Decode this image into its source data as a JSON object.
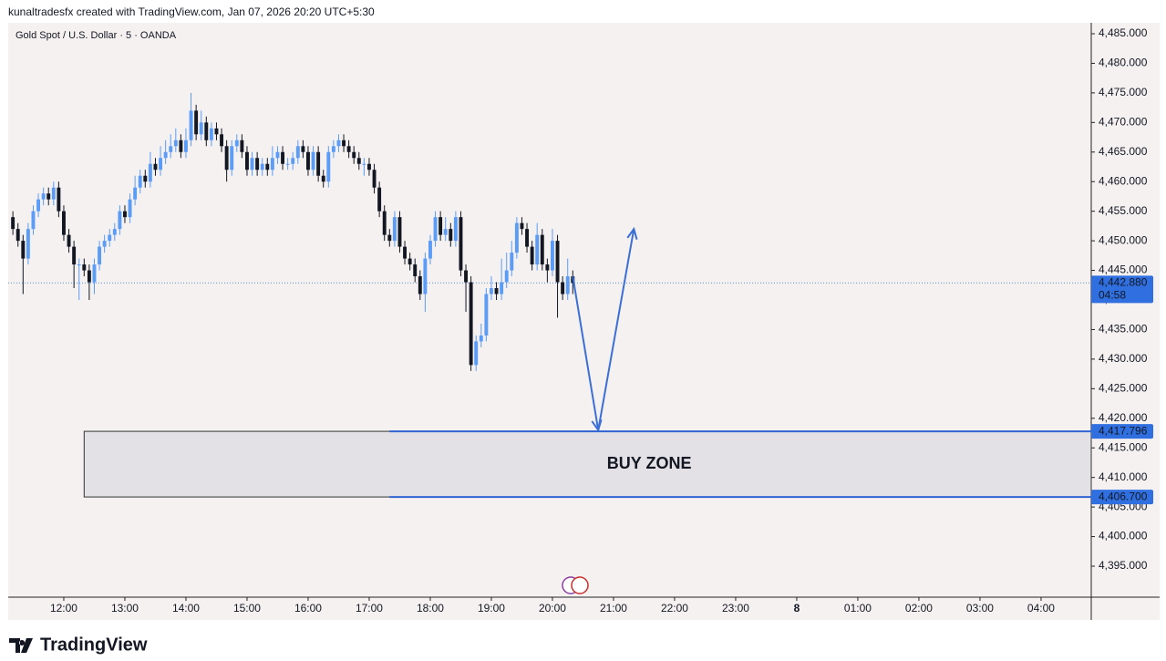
{
  "header": {
    "credit": "kunaltradesfx created with TradingView.com, Jan 07, 2026 20:20 UTC+5:30",
    "logo": "TradingView"
  },
  "chart_data": {
    "type": "candlestick",
    "title": "Gold Spot / U.S. Dollar · 5 · OANDA",
    "x": [
      "11:10",
      "11:15",
      "11:20",
      "11:25",
      "11:30",
      "11:35",
      "11:40",
      "11:45",
      "11:50",
      "11:55",
      "12:00",
      "12:05",
      "12:10",
      "12:15",
      "12:20",
      "12:25",
      "12:30",
      "12:35",
      "12:40",
      "12:45",
      "12:50",
      "12:55",
      "13:00",
      "13:05",
      "13:10",
      "13:15",
      "13:20",
      "13:25",
      "13:30",
      "13:35",
      "13:40",
      "13:45",
      "13:50",
      "13:55",
      "14:00",
      "14:05",
      "14:10",
      "14:15",
      "14:20",
      "14:25",
      "14:30",
      "14:35",
      "14:40",
      "14:45",
      "14:50",
      "14:55",
      "15:00",
      "15:05",
      "15:10",
      "15:15",
      "15:20",
      "15:25",
      "15:30",
      "15:35",
      "15:40",
      "15:45",
      "15:50",
      "15:55",
      "16:00",
      "16:05",
      "16:10",
      "16:15",
      "16:20",
      "16:25",
      "16:30",
      "16:35",
      "16:40",
      "16:45",
      "16:50",
      "16:55",
      "17:00",
      "17:05",
      "17:10",
      "17:15",
      "17:20",
      "17:25",
      "17:30",
      "17:35",
      "17:40",
      "17:45",
      "17:50",
      "17:55",
      "18:00",
      "18:05",
      "18:10",
      "18:15",
      "18:20",
      "18:25",
      "18:30",
      "18:35",
      "18:40",
      "18:45",
      "18:50",
      "18:55",
      "19:00",
      "19:05",
      "19:10",
      "19:15",
      "19:20",
      "19:25",
      "19:30",
      "19:35",
      "19:40",
      "19:45",
      "19:50",
      "19:55",
      "20:00",
      "20:05",
      "20:10",
      "20:15",
      "20:20"
    ],
    "ohlc": [
      [
        4454,
        4455,
        4451,
        4452
      ],
      [
        4452,
        4453,
        4449,
        4450
      ],
      [
        4450,
        4451,
        4441,
        4447
      ],
      [
        4447,
        4453,
        4446,
        4452
      ],
      [
        4452,
        4456,
        4451,
        4455
      ],
      [
        4455,
        4458,
        4454,
        4457
      ],
      [
        4457,
        4459,
        4456,
        4458
      ],
      [
        4458,
        4459,
        4456,
        4457
      ],
      [
        4457,
        4460,
        4456,
        4459
      ],
      [
        4459,
        4460,
        4454,
        4455
      ],
      [
        4455,
        4456,
        4450,
        4451
      ],
      [
        4451,
        4452,
        4448,
        4449
      ],
      [
        4449,
        4450,
        4442,
        4446
      ],
      [
        4446,
        4447,
        4440,
        4446
      ],
      [
        4446,
        4447,
        4444,
        4445
      ],
      [
        4445,
        4446,
        4440,
        4443
      ],
      [
        4443,
        4447,
        4441,
        4446
      ],
      [
        4446,
        4450,
        4445,
        4449
      ],
      [
        4449,
        4451,
        4448,
        4450
      ],
      [
        4450,
        4452,
        4449,
        4451
      ],
      [
        4451,
        4453,
        4450,
        4452
      ],
      [
        4452,
        4456,
        4451,
        4455
      ],
      [
        4455,
        4456,
        4453,
        4454
      ],
      [
        4454,
        4458,
        4453,
        4457
      ],
      [
        4457,
        4461,
        4456,
        4459
      ],
      [
        4459,
        4462,
        4458,
        4461
      ],
      [
        4461,
        4462,
        4459,
        4460
      ],
      [
        4460,
        4465,
        4459,
        4463
      ],
      [
        4463,
        4464,
        4461,
        4462
      ],
      [
        4462,
        4466,
        4461,
        4464
      ],
      [
        4464,
        4467,
        4463,
        4465
      ],
      [
        4465,
        4468,
        4464,
        4466
      ],
      [
        4466,
        4469,
        4465,
        4467
      ],
      [
        4467,
        4468,
        4464,
        4465
      ],
      [
        4465,
        4469,
        4464,
        4467
      ],
      [
        4467,
        4475,
        4466,
        4472
      ],
      [
        4472,
        4473,
        4467,
        4468
      ],
      [
        4468,
        4472,
        4467,
        4470
      ],
      [
        4470,
        4471,
        4466,
        4467
      ],
      [
        4467,
        4470,
        4466,
        4469
      ],
      [
        4469,
        4470,
        4467,
        4468
      ],
      [
        4468,
        4469,
        4465,
        4466
      ],
      [
        4466,
        4467,
        4460,
        4462
      ],
      [
        4462,
        4467,
        4461,
        4466
      ],
      [
        4466,
        4468,
        4465,
        4467
      ],
      [
        4467,
        4468,
        4464,
        4465
      ],
      [
        4465,
        4466,
        4461,
        4462
      ],
      [
        4462,
        4465,
        4461,
        4464
      ],
      [
        4464,
        4465,
        4461,
        4462
      ],
      [
        4462,
        4464,
        4461,
        4463
      ],
      [
        4463,
        4464,
        4461,
        4462
      ],
      [
        4462,
        4466,
        4461,
        4464
      ],
      [
        4464,
        4466,
        4463,
        4465
      ],
      [
        4465,
        4466,
        4462,
        4463
      ],
      [
        4463,
        4464,
        4462,
        4463
      ],
      [
        4463,
        4465,
        4462,
        4464
      ],
      [
        4464,
        4467,
        4463,
        4466
      ],
      [
        4466,
        4467,
        4464,
        4465
      ],
      [
        4465,
        4466,
        4461,
        4462
      ],
      [
        4462,
        4466,
        4461,
        4465
      ],
      [
        4465,
        4466,
        4460,
        4461
      ],
      [
        4461,
        4462,
        4459,
        4460
      ],
      [
        4460,
        4466,
        4459,
        4465
      ],
      [
        4465,
        4467,
        4464,
        4466
      ],
      [
        4466,
        4468,
        4465,
        4467
      ],
      [
        4467,
        4468,
        4465,
        4466
      ],
      [
        4466,
        4467,
        4464,
        4465
      ],
      [
        4465,
        4466,
        4463,
        4464
      ],
      [
        4464,
        4465,
        4462,
        4463
      ],
      [
        4463,
        4464,
        4461,
        4463
      ],
      [
        4463,
        4464,
        4461,
        4462
      ],
      [
        4462,
        4463,
        4458,
        4459
      ],
      [
        4459,
        4460,
        4454,
        4455
      ],
      [
        4455,
        4456,
        4450,
        4451
      ],
      [
        4451,
        4452,
        4449,
        4450
      ],
      [
        4450,
        4455,
        4449,
        4454
      ],
      [
        4454,
        4455,
        4448,
        4449
      ],
      [
        4449,
        4450,
        4446,
        4447
      ],
      [
        4447,
        4448,
        4445,
        4446
      ],
      [
        4446,
        4447,
        4443,
        4444
      ],
      [
        4444,
        4445,
        4440,
        4441
      ],
      [
        4441,
        4448,
        4438,
        4447
      ],
      [
        4447,
        4451,
        4446,
        4450
      ],
      [
        4450,
        4455,
        4449,
        4454
      ],
      [
        4454,
        4455,
        4450,
        4451
      ],
      [
        4451,
        4454,
        4450,
        4452
      ],
      [
        4452,
        4453,
        4449,
        4450
      ],
      [
        4450,
        4455,
        4449,
        4454
      ],
      [
        4454,
        4455,
        4444,
        4445
      ],
      [
        4445,
        4446,
        4438,
        4443
      ],
      [
        4443,
        4444,
        4428,
        4429
      ],
      [
        4429,
        4434,
        4428,
        4433
      ],
      [
        4433,
        4436,
        4432,
        4434
      ],
      [
        4434,
        4442,
        4433,
        4441
      ],
      [
        4441,
        4444,
        4440,
        4442
      ],
      [
        4442,
        4443,
        4440,
        4441
      ],
      [
        4441,
        4447,
        4440,
        4443
      ],
      [
        4443,
        4448,
        4442,
        4445
      ],
      [
        4445,
        4450,
        4444,
        4448
      ],
      [
        4448,
        4454,
        4447,
        4453
      ],
      [
        4453,
        4454,
        4451,
        4452
      ],
      [
        4452,
        4453,
        4448,
        4449
      ],
      [
        4449,
        4450,
        4445,
        4446
      ],
      [
        4446,
        4453,
        4445,
        4451
      ],
      [
        4451,
        4452,
        4445,
        4446
      ],
      [
        4446,
        4447,
        4443,
        4445
      ],
      [
        4445,
        4452,
        4444,
        4450
      ],
      [
        4450,
        4451,
        4437,
        4443
      ],
      [
        4443,
        4444,
        4440,
        4441
      ],
      [
        4441,
        4447,
        4440,
        4444
      ],
      [
        4444,
        4445,
        4441,
        4442.88
      ]
    ],
    "up_color": "#5b9cf6",
    "down_color": "#131722",
    "ylim": [
      4389.76,
      4486.85
    ],
    "yticks": [
      {
        "value": 4395,
        "label": "4,395.000"
      },
      {
        "value": 4400,
        "label": "4,400.000"
      },
      {
        "value": 4405,
        "label": "4,405.000"
      },
      {
        "value": 4410,
        "label": "4,410.000"
      },
      {
        "value": 4415,
        "label": "4,415.000"
      },
      {
        "value": 4420,
        "label": "4,420.000"
      },
      {
        "value": 4425,
        "label": "4,425.000"
      },
      {
        "value": 4430,
        "label": "4,430.000"
      },
      {
        "value": 4435,
        "label": "4,435.000"
      },
      {
        "value": 4440,
        "label": "4,440.000"
      },
      {
        "value": 4445,
        "label": "4,445.000"
      },
      {
        "value": 4450,
        "label": "4,450.000"
      },
      {
        "value": 4455,
        "label": "4,455.000"
      },
      {
        "value": 4460,
        "label": "4,460.000"
      },
      {
        "value": 4465,
        "label": "4,465.000"
      },
      {
        "value": 4470,
        "label": "4,470.000"
      },
      {
        "value": 4475,
        "label": "4,475.000"
      },
      {
        "value": 4480,
        "label": "4,480.000"
      },
      {
        "value": 4485,
        "label": "4,485.000"
      }
    ],
    "xlim": [
      665.4,
      1729.3
    ],
    "xticks": [
      {
        "value": 720,
        "label": "12:00"
      },
      {
        "value": 780,
        "label": "13:00"
      },
      {
        "value": 840,
        "label": "14:00"
      },
      {
        "value": 900,
        "label": "15:00"
      },
      {
        "value": 960,
        "label": "16:00"
      },
      {
        "value": 1020,
        "label": "17:00"
      },
      {
        "value": 1080,
        "label": "18:00"
      },
      {
        "value": 1140,
        "label": "19:00"
      },
      {
        "value": 1200,
        "label": "20:00"
      },
      {
        "value": 1260,
        "label": "21:00"
      },
      {
        "value": 1320,
        "label": "22:00"
      },
      {
        "value": 1380,
        "label": "23:00"
      },
      {
        "value": 1440,
        "label": "8"
      },
      {
        "value": 1500,
        "label": "01:00"
      },
      {
        "value": 1560,
        "label": "02:00"
      },
      {
        "value": 1620,
        "label": "03:00"
      },
      {
        "value": 1680,
        "label": "04:00"
      }
    ],
    "last_price": {
      "value": 4442.88,
      "label": "4,442.880",
      "countdown": "04:58"
    },
    "zone": {
      "label": "BUY ZONE",
      "start": "12:20",
      "line_start": "17:20",
      "top": 4417.796,
      "top_label": "4,417.796",
      "bottom": 4406.7,
      "bottom_label": "4,406.700",
      "line_color": "#2f63d1"
    },
    "arrow": {
      "x": [
        "20:20",
        "20:45",
        "21:20"
      ],
      "y": [
        4444,
        4418,
        4452
      ],
      "color": "#3a6fd8"
    }
  }
}
